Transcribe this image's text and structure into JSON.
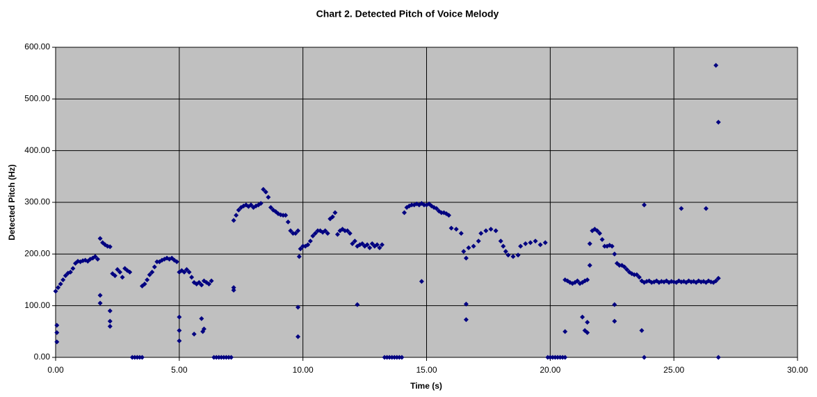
{
  "chart_data": {
    "type": "scatter",
    "title": "Chart 2. Detected Pitch of Voice Melody",
    "x_label": "Time (s)",
    "y_label": "Detected Pitch (Hz)",
    "color": "#000080",
    "grid": true,
    "xlim": [
      0,
      30
    ],
    "ylim": [
      0,
      600
    ],
    "xticks": [
      {
        "value": 0,
        "label": "0.00"
      },
      {
        "value": 5,
        "label": "5.00"
      },
      {
        "value": 10,
        "label": "10.00"
      },
      {
        "value": 15,
        "label": "15.00"
      },
      {
        "value": 20,
        "label": "20.00"
      },
      {
        "value": 25,
        "label": "25.00"
      },
      {
        "value": 30,
        "label": "30.00"
      }
    ],
    "yticks": [
      {
        "value": 0,
        "label": "0.00"
      },
      {
        "value": 100,
        "label": "100.00"
      },
      {
        "value": 200,
        "label": "200.00"
      },
      {
        "value": 300,
        "label": "300.00"
      },
      {
        "value": 400,
        "label": "400.00"
      },
      {
        "value": 500,
        "label": "500.00"
      },
      {
        "value": 600,
        "label": "600.00"
      }
    ],
    "x": [
      0,
      0.1,
      0.2,
      0.3,
      0.4,
      0.5,
      0.6,
      0.7,
      0.8,
      0.9,
      1,
      1.1,
      1.2,
      1.3,
      1.4,
      1.5,
      1.6,
      1.7,
      1.8,
      1.9,
      2,
      2.1,
      2.2,
      2.3,
      2.4,
      2.5,
      2.6,
      2.7,
      2.8,
      2.9,
      3,
      3.1,
      3.2,
      3.3,
      3.4,
      3.5,
      3.5,
      3.6,
      3.7,
      3.8,
      3.9,
      4,
      4.1,
      4.2,
      4.3,
      4.4,
      4.5,
      4.6,
      4.7,
      4.8,
      4.9,
      5,
      5.1,
      5.2,
      5.3,
      5.4,
      5.5,
      5.6,
      5.7,
      5.8,
      5.9,
      6,
      6.1,
      6.2,
      6.3,
      6.4,
      6.5,
      6.6,
      6.7,
      6.8,
      6.9,
      7,
      7.1,
      7.2,
      7.3,
      7.4,
      7.5,
      7.6,
      7.7,
      7.8,
      7.9,
      8,
      8.1,
      8.2,
      8.3,
      8.4,
      8.5,
      8.6,
      8.7,
      8.8,
      8.9,
      9,
      9.1,
      9.2,
      9.3,
      9.4,
      9.5,
      9.6,
      9.7,
      9.8,
      9.85,
      9.9,
      10,
      10.1,
      10.2,
      10.3,
      10.4,
      10.5,
      10.6,
      10.7,
      10.8,
      10.9,
      11,
      11.1,
      11.2,
      11.3,
      11.4,
      11.5,
      11.6,
      11.7,
      11.8,
      11.9,
      12,
      12.1,
      12.2,
      12.3,
      12.4,
      12.5,
      12.6,
      12.7,
      12.8,
      12.9,
      13,
      13.1,
      13.2,
      13.3,
      13.4,
      13.5,
      13.6,
      13.7,
      13.8,
      13.9,
      14,
      14.1,
      14.2,
      14.3,
      14.4,
      14.5,
      14.6,
      14.7,
      14.8,
      14.9,
      15,
      15.1,
      15.2,
      15.3,
      15.4,
      15.5,
      15.6,
      15.7,
      15.8,
      15.9,
      16,
      16.2,
      16.4,
      16.5,
      16.6,
      16.7,
      16.9,
      17.1,
      17.2,
      17.4,
      17.6,
      17.8,
      18,
      18.1,
      18.2,
      18.3,
      18.5,
      18.7,
      18.8,
      19,
      19.2,
      19.4,
      19.6,
      19.8,
      19.9,
      20,
      20.1,
      20.2,
      20.3,
      20.4,
      20.5,
      20.6,
      20.6,
      20.7,
      20.8,
      20.9,
      21,
      21.1,
      21.2,
      21.3,
      21.4,
      21.5,
      21.6,
      21.6,
      21.7,
      21.8,
      21.9,
      22,
      22.1,
      22.2,
      22.3,
      22.4,
      22.5,
      22.6,
      22.7,
      22.8,
      22.9,
      23,
      23.1,
      23.2,
      23.3,
      23.4,
      23.5,
      23.6,
      23.7,
      23.8,
      23.9,
      24,
      24.1,
      24.2,
      24.3,
      24.4,
      24.5,
      24.6,
      24.7,
      24.8,
      24.9,
      25,
      25.1,
      25.2,
      25.3,
      25.4,
      25.5,
      25.6,
      25.7,
      25.8,
      25.9,
      26,
      26.1,
      26.2,
      26.3,
      26.4,
      26.5,
      26.6,
      26.7,
      26.8,
      0.05,
      0.05,
      0.05,
      1.8,
      1.8,
      2.2,
      2.2,
      2.2,
      5,
      5,
      5,
      5.6,
      5.9,
      6,
      5.95,
      7.2,
      7.2,
      9.8,
      9.8,
      12.2,
      14.8,
      16.6,
      16.6,
      20.6,
      21.3,
      21.4,
      21.5,
      21.5,
      22.6,
      22.6,
      23.7,
      23.8,
      23.8,
      25.3,
      26.3,
      26.7,
      26.8,
      26.8
    ],
    "values": [
      128,
      135,
      142,
      150,
      158,
      163,
      165,
      172,
      182,
      186,
      185,
      187,
      188,
      186,
      190,
      192,
      195,
      190,
      230,
      222,
      218,
      215,
      214,
      162,
      158,
      170,
      165,
      155,
      172,
      168,
      165,
      0,
      0,
      0,
      0,
      0,
      138,
      142,
      150,
      160,
      165,
      175,
      185,
      185,
      188,
      190,
      192,
      190,
      192,
      188,
      185,
      165,
      168,
      165,
      170,
      165,
      155,
      145,
      142,
      145,
      140,
      148,
      145,
      142,
      148,
      0,
      0,
      0,
      0,
      0,
      0,
      0,
      0,
      265,
      275,
      285,
      290,
      293,
      295,
      292,
      295,
      290,
      293,
      295,
      298,
      325,
      320,
      310,
      290,
      285,
      282,
      278,
      276,
      275,
      275,
      262,
      245,
      240,
      240,
      245,
      195,
      210,
      215,
      215,
      218,
      225,
      235,
      240,
      245,
      245,
      242,
      245,
      240,
      268,
      272,
      280,
      238,
      245,
      248,
      245,
      245,
      240,
      220,
      225,
      215,
      218,
      220,
      215,
      218,
      212,
      220,
      215,
      218,
      212,
      218,
      0,
      0,
      0,
      0,
      0,
      0,
      0,
      0,
      280,
      290,
      293,
      295,
      295,
      297,
      295,
      298,
      295,
      295,
      297,
      293,
      290,
      288,
      283,
      280,
      280,
      278,
      275,
      250,
      248,
      240,
      205,
      192,
      212,
      215,
      225,
      240,
      245,
      248,
      245,
      225,
      215,
      205,
      198,
      195,
      198,
      215,
      220,
      222,
      225,
      218,
      222,
      0,
      0,
      0,
      0,
      0,
      0,
      0,
      0,
      150,
      148,
      145,
      143,
      145,
      148,
      143,
      145,
      148,
      150,
      178,
      220,
      245,
      248,
      245,
      240,
      228,
      215,
      215,
      217,
      215,
      200,
      182,
      178,
      178,
      175,
      170,
      165,
      162,
      160,
      160,
      155,
      148,
      145,
      147,
      148,
      145,
      146,
      148,
      145,
      147,
      146,
      148,
      145,
      147,
      146,
      145,
      148,
      146,
      147,
      145,
      148,
      146,
      147,
      145,
      148,
      146,
      147,
      145,
      148,
      146,
      145,
      148,
      153,
      62,
      48,
      30,
      120,
      105,
      90,
      70,
      60,
      78,
      52,
      32,
      45,
      75,
      55,
      50,
      135,
      130,
      97,
      40,
      102,
      147,
      103,
      73,
      50,
      78,
      52,
      68,
      48,
      102,
      70,
      52,
      295,
      0,
      288,
      288,
      565,
      455,
      0
    ]
  }
}
